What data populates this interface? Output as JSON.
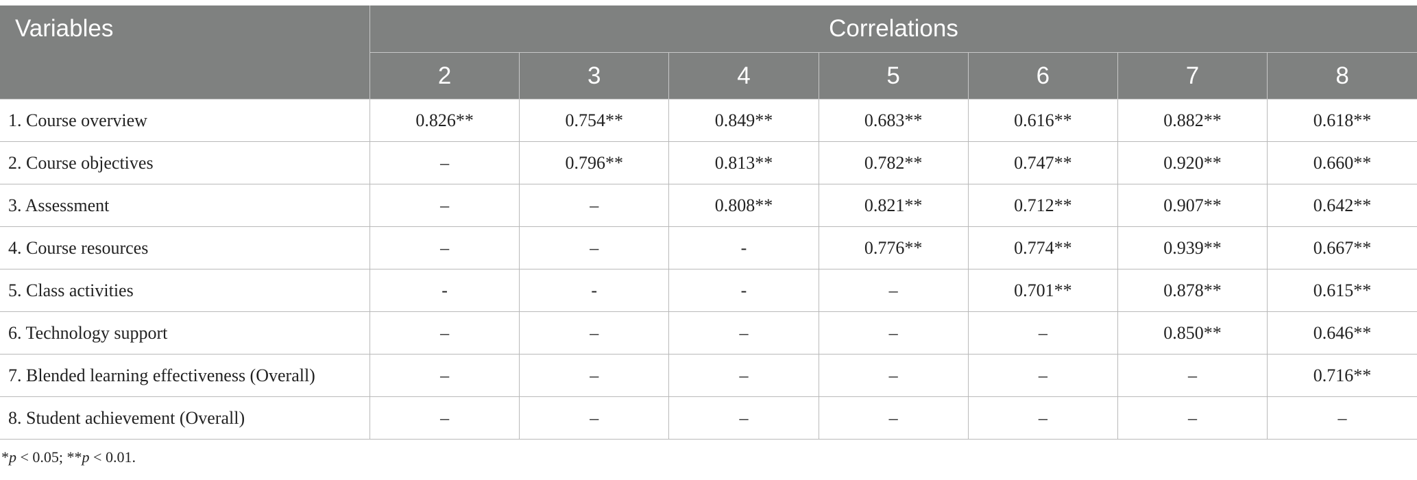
{
  "header": {
    "variables_label": "Variables",
    "correlations_label": "Correlations",
    "columns": [
      "2",
      "3",
      "4",
      "5",
      "6",
      "7",
      "8"
    ]
  },
  "rows": [
    {
      "label": "1. Course overview",
      "cells": [
        "0.826**",
        "0.754**",
        "0.849**",
        "0.683**",
        "0.616**",
        "0.882**",
        "0.618**"
      ]
    },
    {
      "label": "2. Course objectives",
      "cells": [
        "–",
        "0.796**",
        "0.813**",
        "0.782**",
        "0.747**",
        "0.920**",
        "0.660**"
      ]
    },
    {
      "label": "3. Assessment",
      "cells": [
        "–",
        "–",
        "0.808**",
        "0.821**",
        "0.712**",
        "0.907**",
        "0.642**"
      ]
    },
    {
      "label": "4. Course resources",
      "cells": [
        "–",
        "–",
        "-",
        "0.776**",
        "0.774**",
        "0.939**",
        "0.667**"
      ]
    },
    {
      "label": "5. Class activities",
      "cells": [
        "-",
        "-",
        "-",
        "–",
        "0.701**",
        "0.878**",
        "0.615**"
      ]
    },
    {
      "label": "6. Technology support",
      "cells": [
        "–",
        "–",
        "–",
        "–",
        "–",
        "0.850**",
        "0.646**"
      ]
    },
    {
      "label": "7. Blended learning effectiveness (Overall)",
      "cells": [
        "–",
        "–",
        "–",
        "–",
        "–",
        "–",
        "0.716**"
      ]
    },
    {
      "label": "8. Student achievement (Overall)",
      "cells": [
        "–",
        "–",
        "–",
        "–",
        "–",
        "–",
        "–"
      ]
    }
  ],
  "footnote": {
    "p1_prefix": "*",
    "p1_var": "p",
    "p1_rest": " < 0.05; **",
    "p2_var": "p",
    "p2_rest": " < 0.01."
  }
}
